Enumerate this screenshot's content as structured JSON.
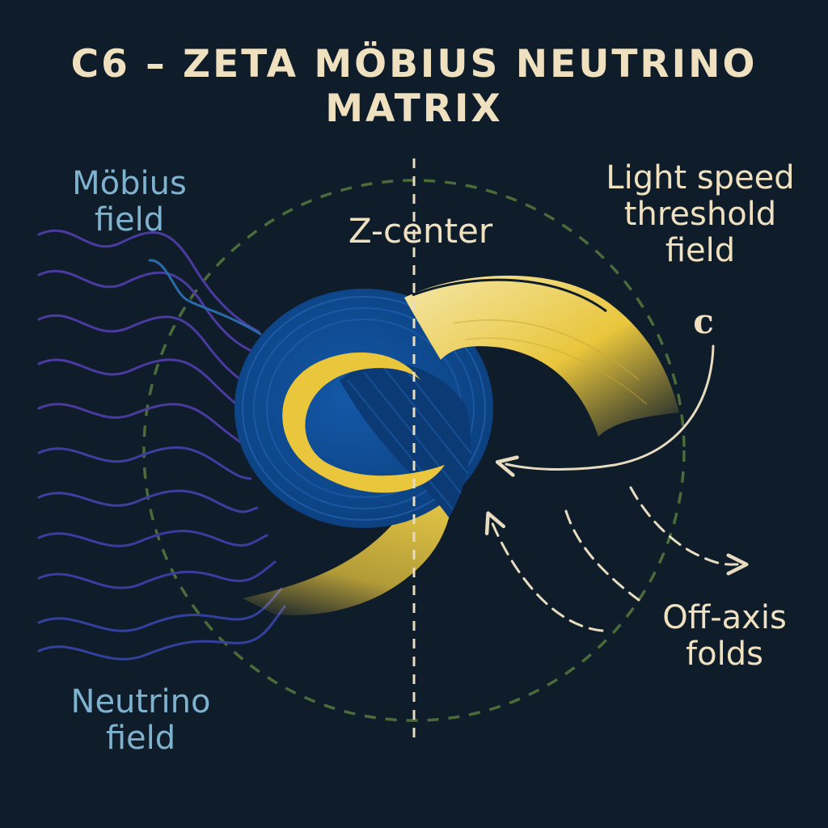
{
  "title": {
    "line1": "C6 – ZETA MÖBIUS NEUTRINO",
    "line2": "MATRIX"
  },
  "labels": {
    "mobius_field": {
      "line1": "Möbius",
      "line2": "field"
    },
    "z_center": "Z-center",
    "light_speed": {
      "line1": "Light speed",
      "line2": "threshold",
      "line3": "field",
      "symbol": "c"
    },
    "off_axis": {
      "line1": "Off-axis",
      "line2": "folds"
    },
    "neutrino_field": {
      "line1": "Neutrino",
      "line2": "field"
    }
  },
  "colors": {
    "background": "#0f1d2b",
    "title_text": "#efe1bf",
    "field_label_text": "#7fb2cf",
    "ribbon_blue": "#0e4a8c",
    "ribbon_yellow": "#e9c63c",
    "wave_purple": "#4b3aa0",
    "wave_blue": "#2a5cae",
    "dashed_circle": "#4b6b3a",
    "arrows": "#e8dcc0"
  },
  "icons": [
    "mobius-ribbon",
    "wave-lines",
    "dashed-circle",
    "z-axis",
    "curved-arrow"
  ]
}
